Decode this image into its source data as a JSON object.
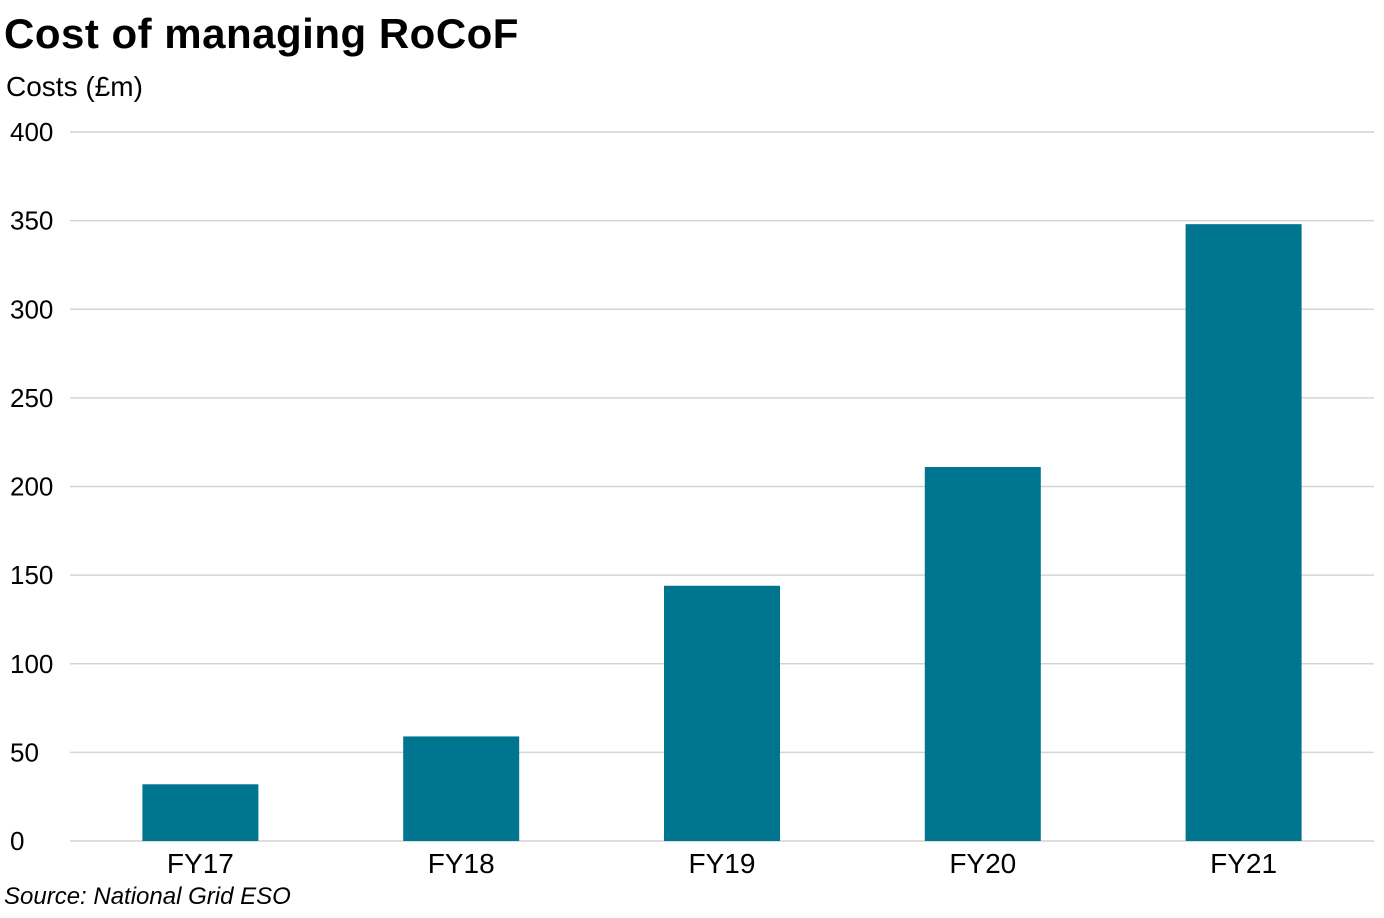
{
  "chart_data": {
    "type": "bar",
    "title": "Cost of managing RoCoF",
    "ylabel": "Costs (£m)",
    "xlabel": "",
    "categories": [
      "FY17",
      "FY18",
      "FY19",
      "FY20",
      "FY21"
    ],
    "values": [
      32,
      59,
      144,
      211,
      348
    ],
    "ylim": [
      0,
      400
    ],
    "yticks": [
      0,
      50,
      100,
      150,
      200,
      250,
      300,
      350,
      400
    ],
    "grid": true,
    "legend": "none",
    "bar_color": "#00758f",
    "grid_color": "#d4d4d4",
    "source": "Source: National Grid ESO"
  }
}
